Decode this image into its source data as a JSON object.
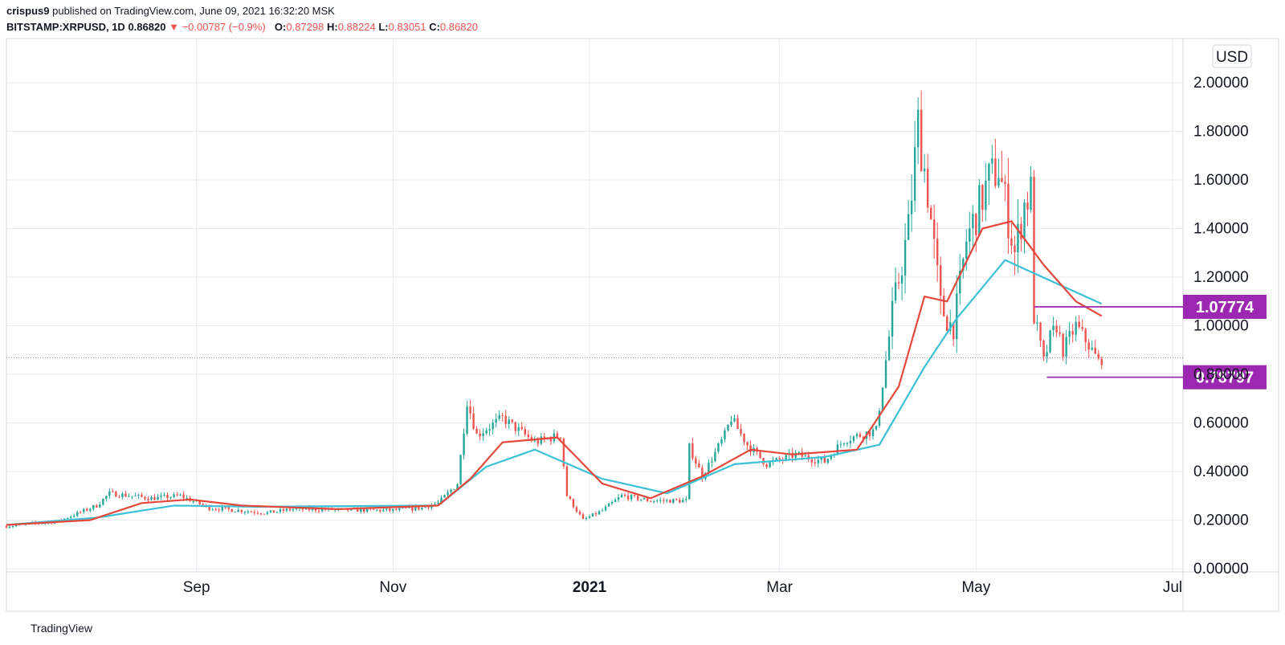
{
  "header": {
    "author": "crispus9",
    "published_text": "published on TradingView.com, June 09, 2021 16:32:20 MSK",
    "symbol": "BITSTAMP:XRPUSD, 1D",
    "last": "0.86820",
    "change_arrow": "▼",
    "change": "−0.00787 (−0.9%)",
    "o_label": "O:",
    "o_value": "0.87298",
    "h_label": "H:",
    "h_value": "0.88224",
    "l_label": "L:",
    "l_value": "0.83051",
    "c_label": "C:",
    "c_value": "0.86820"
  },
  "footer": {
    "brand": "TradingView",
    "logo_icon": "tradingview-logo-icon"
  },
  "colors": {
    "up": "#26a69a",
    "down": "#ef5350",
    "ma_fast": "#e5473a",
    "ma_slow": "#3cc0d6",
    "level": "#9c27b0",
    "grid": "#e8eaef",
    "current": "#9598a1"
  },
  "chart_data": {
    "type": "candlestick",
    "symbol": "BITSTAMP:XRPUSD",
    "interval": "1D",
    "currency_label": "USD",
    "y_ticks": [
      "0.00000",
      "0.20000",
      "0.40000",
      "0.60000",
      "0.80000",
      "1.00000",
      "1.20000",
      "1.40000",
      "1.60000",
      "1.80000",
      "2.00000"
    ],
    "y_range": [
      0,
      2.1
    ],
    "x_labels": [
      "Sep",
      "Nov",
      "2021",
      "Mar",
      "May",
      "Jul"
    ],
    "x_label_dates": [
      "2020-09-01",
      "2020-11-01",
      "2021-01-01",
      "2021-03-01",
      "2021-05-01",
      "2021-07-01"
    ],
    "x_range": [
      "2020-07-04",
      "2021-07-01"
    ],
    "grid": true,
    "current_price": 0.8682,
    "levels": [
      {
        "label": "1.07774",
        "value": 1.07774,
        "from": "2021-05-19",
        "to": "2021-07-01"
      },
      {
        "label": "0.78797",
        "value": 0.78797,
        "from": "2021-05-23",
        "to": "2021-07-01"
      }
    ],
    "price_path": [
      [
        "2020-07-04",
        0.175
      ],
      [
        "2020-07-20",
        0.195
      ],
      [
        "2020-08-01",
        0.26
      ],
      [
        "2020-08-05",
        0.31
      ],
      [
        "2020-08-18",
        0.29
      ],
      [
        "2020-08-27",
        0.3
      ],
      [
        "2020-09-05",
        0.25
      ],
      [
        "2020-09-23",
        0.23
      ],
      [
        "2020-10-01",
        0.245
      ],
      [
        "2020-10-31",
        0.24
      ],
      [
        "2020-11-10",
        0.25
      ],
      [
        "2020-11-15",
        0.27
      ],
      [
        "2020-11-21",
        0.35
      ],
      [
        "2020-11-24",
        0.69
      ],
      [
        "2020-11-27",
        0.55
      ],
      [
        "2020-12-05",
        0.62
      ],
      [
        "2020-12-15",
        0.52
      ],
      [
        "2020-12-23",
        0.55
      ],
      [
        "2020-12-25",
        0.3
      ],
      [
        "2020-12-30",
        0.2
      ],
      [
        "2021-01-05",
        0.24
      ],
      [
        "2021-01-11",
        0.3
      ],
      [
        "2021-01-20",
        0.28
      ],
      [
        "2021-01-31",
        0.28
      ],
      [
        "2021-02-01",
        0.5
      ],
      [
        "2021-02-05",
        0.38
      ],
      [
        "2021-02-12",
        0.55
      ],
      [
        "2021-02-14",
        0.62
      ],
      [
        "2021-02-19",
        0.51
      ],
      [
        "2021-02-25",
        0.43
      ],
      [
        "2021-03-06",
        0.47
      ],
      [
        "2021-03-15",
        0.44
      ],
      [
        "2021-03-21",
        0.53
      ],
      [
        "2021-03-31",
        0.57
      ],
      [
        "2021-04-05",
        1.05
      ],
      [
        "2021-04-10",
        1.4
      ],
      [
        "2021-04-13",
        1.83
      ],
      [
        "2021-04-16",
        1.55
      ],
      [
        "2021-04-20",
        1.08
      ],
      [
        "2021-04-24",
        0.98
      ],
      [
        "2021-04-28",
        1.35
      ],
      [
        "2021-05-05",
        1.6
      ],
      [
        "2021-05-08",
        1.65
      ],
      [
        "2021-05-13",
        1.3
      ],
      [
        "2021-05-16",
        1.5
      ],
      [
        "2021-05-18",
        1.55
      ],
      [
        "2021-05-19",
        1.05
      ],
      [
        "2021-05-22",
        0.85
      ],
      [
        "2021-05-24",
        0.95
      ],
      [
        "2021-05-26",
        1.0
      ],
      [
        "2021-05-28",
        0.9
      ],
      [
        "2021-06-01",
        1.0
      ],
      [
        "2021-06-05",
        0.92
      ],
      [
        "2021-06-08",
        0.85
      ],
      [
        "2021-06-09",
        0.868
      ]
    ],
    "ma_fast": [
      [
        "2020-07-04",
        0.18
      ],
      [
        "2020-07-30",
        0.2
      ],
      [
        "2020-08-15",
        0.27
      ],
      [
        "2020-08-30",
        0.285
      ],
      [
        "2020-09-15",
        0.26
      ],
      [
        "2020-10-15",
        0.245
      ],
      [
        "2020-11-15",
        0.26
      ],
      [
        "2020-11-25",
        0.37
      ],
      [
        "2020-12-05",
        0.52
      ],
      [
        "2020-12-22",
        0.54
      ],
      [
        "2021-01-05",
        0.35
      ],
      [
        "2021-01-20",
        0.29
      ],
      [
        "2021-02-05",
        0.38
      ],
      [
        "2021-02-20",
        0.49
      ],
      [
        "2021-03-05",
        0.47
      ],
      [
        "2021-03-25",
        0.49
      ],
      [
        "2021-04-07",
        0.75
      ],
      [
        "2021-04-15",
        1.12
      ],
      [
        "2021-04-22",
        1.1
      ],
      [
        "2021-05-03",
        1.4
      ],
      [
        "2021-05-12",
        1.43
      ],
      [
        "2021-05-22",
        1.25
      ],
      [
        "2021-06-01",
        1.1
      ],
      [
        "2021-06-09",
        1.04
      ]
    ],
    "ma_slow": [
      [
        "2020-07-04",
        0.18
      ],
      [
        "2020-08-01",
        0.21
      ],
      [
        "2020-08-25",
        0.26
      ],
      [
        "2020-09-20",
        0.255
      ],
      [
        "2020-11-15",
        0.26
      ],
      [
        "2020-11-30",
        0.42
      ],
      [
        "2020-12-15",
        0.49
      ],
      [
        "2021-01-05",
        0.37
      ],
      [
        "2021-01-25",
        0.31
      ],
      [
        "2021-02-15",
        0.43
      ],
      [
        "2021-03-15",
        0.46
      ],
      [
        "2021-04-01",
        0.51
      ],
      [
        "2021-04-15",
        0.83
      ],
      [
        "2021-04-25",
        1.03
      ],
      [
        "2021-05-10",
        1.27
      ],
      [
        "2021-05-25",
        1.18
      ],
      [
        "2021-06-09",
        1.09
      ]
    ]
  }
}
